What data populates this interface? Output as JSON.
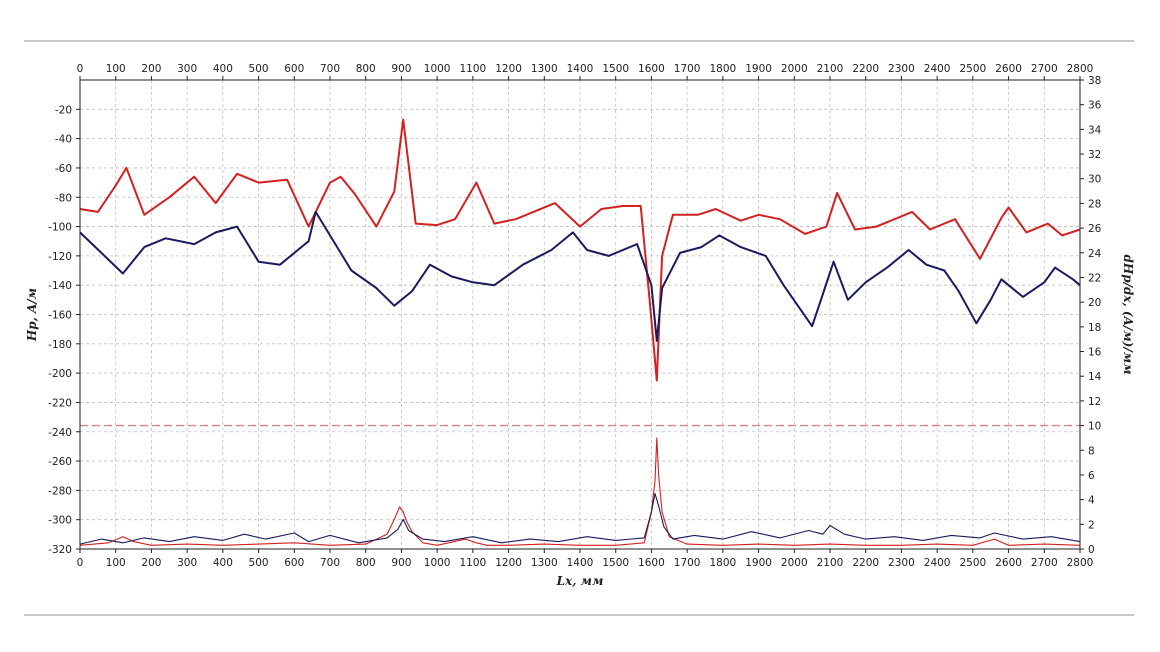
{
  "chart_data": {
    "type": "line",
    "title": "",
    "xlabel": "Lx, мм",
    "ylabel_left": "Hp, A/м",
    "ylabel_right": "dHp/dx, (A/м)/мм",
    "xlim": [
      0,
      2800
    ],
    "ylim_left": [
      -320,
      0
    ],
    "ylim_right": [
      0,
      38
    ],
    "x_ticks": [
      0,
      100,
      200,
      300,
      400,
      500,
      600,
      700,
      800,
      900,
      1000,
      1100,
      1200,
      1300,
      1400,
      1500,
      1600,
      1700,
      1800,
      1900,
      2000,
      2100,
      2200,
      2300,
      2400,
      2500,
      2600,
      2700,
      2800
    ],
    "y_left_ticks": [
      -20,
      -40,
      -60,
      -80,
      -100,
      -120,
      -140,
      -160,
      -180,
      -200,
      -220,
      -240,
      -260,
      -280,
      -300,
      -320
    ],
    "y_right_ticks": [
      0,
      2,
      4,
      6,
      8,
      10,
      12,
      14,
      16,
      18,
      20,
      22,
      24,
      26,
      28,
      30,
      32,
      34,
      36,
      38
    ],
    "grid": true,
    "threshold_line": {
      "axis": "right",
      "value": 10,
      "color": "#e08080",
      "style": "dashed"
    },
    "series": [
      {
        "axis": "left",
        "color": "#d42020",
        "x": [
          0,
          50,
          100,
          130,
          180,
          250,
          320,
          380,
          440,
          500,
          580,
          640,
          700,
          730,
          770,
          830,
          880,
          905,
          940,
          1000,
          1050,
          1110,
          1160,
          1220,
          1330,
          1400,
          1460,
          1520,
          1570,
          1595,
          1615,
          1630,
          1660,
          1730,
          1780,
          1850,
          1900,
          1960,
          2030,
          2090,
          2120,
          2170,
          2230,
          2330,
          2380,
          2450,
          2520,
          2580,
          2600,
          2650,
          2710,
          2750,
          2800
        ],
        "y": [
          -88,
          -90,
          -72,
          -60,
          -92,
          -80,
          -66,
          -84,
          -64,
          -70,
          -68,
          -100,
          -70,
          -66,
          -78,
          -100,
          -76,
          -27,
          -98,
          -99,
          -95,
          -70,
          -98,
          -95,
          -84,
          -100,
          -88,
          -86,
          -86,
          -150,
          -205,
          -120,
          -92,
          -92,
          -88,
          -96,
          -92,
          -95,
          -105,
          -100,
          -77,
          -102,
          -100,
          -90,
          -102,
          -95,
          -122,
          -94,
          -87,
          -104,
          -98,
          -106,
          -102
        ]
      },
      {
        "axis": "left",
        "color": "#1a1a5e",
        "x": [
          0,
          60,
          120,
          180,
          240,
          320,
          380,
          440,
          500,
          560,
          600,
          640,
          660,
          700,
          760,
          830,
          880,
          930,
          980,
          1040,
          1100,
          1160,
          1240,
          1320,
          1380,
          1420,
          1480,
          1560,
          1600,
          1615,
          1630,
          1680,
          1740,
          1790,
          1850,
          1920,
          1970,
          2050,
          2080,
          2110,
          2150,
          2200,
          2260,
          2320,
          2370,
          2420,
          2460,
          2510,
          2550,
          2580,
          2640,
          2700,
          2730,
          2780,
          2800
        ],
        "y": [
          -104,
          -118,
          -132,
          -114,
          -108,
          -112,
          -104,
          -100,
          -124,
          -126,
          -118,
          -110,
          -90,
          -106,
          -130,
          -142,
          -154,
          -144,
          -126,
          -134,
          -138,
          -140,
          -126,
          -116,
          -104,
          -116,
          -120,
          -112,
          -140,
          -178,
          -142,
          -118,
          -114,
          -106,
          -114,
          -120,
          -140,
          -168,
          -146,
          -124,
          -150,
          -138,
          -128,
          -116,
          -126,
          -130,
          -144,
          -166,
          -150,
          -136,
          -148,
          -138,
          -128,
          -136,
          -140
        ]
      },
      {
        "axis": "right",
        "color": "#d42020",
        "x": [
          0,
          80,
          120,
          150,
          200,
          300,
          400,
          500,
          600,
          700,
          800,
          860,
          880,
          895,
          905,
          915,
          930,
          960,
          1000,
          1080,
          1110,
          1140,
          1200,
          1300,
          1400,
          1500,
          1580,
          1600,
          1610,
          1615,
          1620,
          1630,
          1650,
          1700,
          1800,
          1900,
          2000,
          2100,
          2200,
          2300,
          2400,
          2500,
          2560,
          2600,
          2700,
          2800
        ],
        "y": [
          0.3,
          0.5,
          1.0,
          0.6,
          0.3,
          0.4,
          0.3,
          0.4,
          0.5,
          0.3,
          0.4,
          1.2,
          2.4,
          3.4,
          3.0,
          2.2,
          1.4,
          0.5,
          0.3,
          0.8,
          0.5,
          0.3,
          0.3,
          0.4,
          0.3,
          0.3,
          0.5,
          3.0,
          5.5,
          9.0,
          6.0,
          3.0,
          1.0,
          0.4,
          0.3,
          0.4,
          0.3,
          0.4,
          0.3,
          0.3,
          0.4,
          0.3,
          0.8,
          0.3,
          0.4,
          0.3
        ]
      },
      {
        "axis": "right",
        "color": "#1a1a5e",
        "x": [
          0,
          60,
          120,
          180,
          250,
          320,
          400,
          460,
          520,
          600,
          640,
          700,
          780,
          860,
          890,
          905,
          920,
          960,
          1020,
          1100,
          1180,
          1260,
          1340,
          1420,
          1500,
          1580,
          1600,
          1610,
          1620,
          1635,
          1660,
          1720,
          1800,
          1880,
          1960,
          2040,
          2080,
          2100,
          2140,
          2200,
          2280,
          2360,
          2440,
          2520,
          2560,
          2640,
          2720,
          2800
        ],
        "y": [
          0.4,
          0.8,
          0.5,
          0.9,
          0.6,
          1.0,
          0.7,
          1.2,
          0.8,
          1.3,
          0.6,
          1.1,
          0.5,
          0.9,
          1.6,
          2.4,
          1.5,
          0.8,
          0.6,
          1.0,
          0.5,
          0.8,
          0.6,
          1.0,
          0.7,
          0.9,
          3.0,
          4.5,
          3.5,
          1.8,
          0.8,
          1.1,
          0.8,
          1.4,
          0.9,
          1.5,
          1.2,
          1.9,
          1.2,
          0.8,
          1.0,
          0.7,
          1.1,
          0.9,
          1.3,
          0.8,
          1.0,
          0.6
        ]
      }
    ]
  }
}
